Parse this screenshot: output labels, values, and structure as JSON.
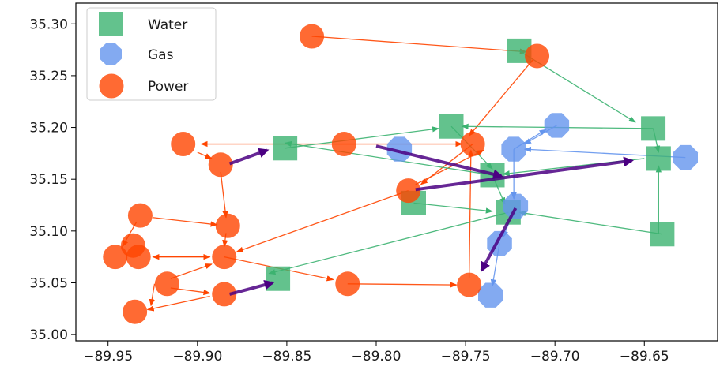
{
  "chart_data": {
    "type": "scatter",
    "title": "",
    "xlabel": "",
    "ylabel": "",
    "xlim": [
      -89.968,
      -89.609
    ],
    "ylim": [
      34.994,
      35.32
    ],
    "grid": false,
    "legend_position": "top-left",
    "x_ticks": [
      -89.95,
      -89.9,
      -89.85,
      -89.8,
      -89.75,
      -89.7,
      -89.65
    ],
    "x_tick_labels": [
      "−89.95",
      "−89.90",
      "−89.85",
      "−89.80",
      "−89.75",
      "−89.70",
      "−89.65"
    ],
    "y_ticks": [
      35.0,
      35.05,
      35.1,
      35.15,
      35.2,
      35.25,
      35.3
    ],
    "y_tick_labels": [
      "35.00",
      "35.05",
      "35.10",
      "35.15",
      "35.20",
      "35.25",
      "35.30"
    ],
    "legend": [
      {
        "label": "Water",
        "marker": "square",
        "color": "#3cb371"
      },
      {
        "label": "Gas",
        "marker": "octagon",
        "color": "#6495ed"
      },
      {
        "label": "Power",
        "marker": "circle",
        "color": "#ff4500"
      }
    ],
    "series": [
      {
        "name": "Water",
        "marker": "square",
        "color": "#3cb371",
        "points": [
          {
            "x": -89.72,
            "y": 35.274
          },
          {
            "x": -89.758,
            "y": 35.201
          },
          {
            "x": -89.645,
            "y": 35.199
          },
          {
            "x": -89.851,
            "y": 35.18
          },
          {
            "x": -89.642,
            "y": 35.17
          },
          {
            "x": -89.735,
            "y": 35.154
          },
          {
            "x": -89.779,
            "y": 35.127
          },
          {
            "x": -89.726,
            "y": 35.118
          },
          {
            "x": -89.64,
            "y": 35.097
          },
          {
            "x": -89.855,
            "y": 35.054
          }
        ]
      },
      {
        "name": "Gas",
        "marker": "octagon",
        "color": "#6495ed",
        "points": [
          {
            "x": -89.699,
            "y": 35.202
          },
          {
            "x": -89.787,
            "y": 35.179
          },
          {
            "x": -89.723,
            "y": 35.179
          },
          {
            "x": -89.627,
            "y": 35.171
          },
          {
            "x": -89.722,
            "y": 35.124
          },
          {
            "x": -89.731,
            "y": 35.088
          },
          {
            "x": -89.736,
            "y": 35.038
          }
        ]
      },
      {
        "name": "Power",
        "marker": "circle",
        "color": "#ff4500",
        "points": [
          {
            "x": -89.836,
            "y": 35.288
          },
          {
            "x": -89.71,
            "y": 35.269
          },
          {
            "x": -89.908,
            "y": 35.184
          },
          {
            "x": -89.818,
            "y": 35.184
          },
          {
            "x": -89.746,
            "y": 35.184
          },
          {
            "x": -89.887,
            "y": 35.164
          },
          {
            "x": -89.782,
            "y": 35.139
          },
          {
            "x": -89.932,
            "y": 35.115
          },
          {
            "x": -89.883,
            "y": 35.105
          },
          {
            "x": -89.936,
            "y": 35.086
          },
          {
            "x": -89.946,
            "y": 35.075
          },
          {
            "x": -89.933,
            "y": 35.075
          },
          {
            "x": -89.885,
            "y": 35.075
          },
          {
            "x": -89.917,
            "y": 35.049
          },
          {
            "x": -89.816,
            "y": 35.049
          },
          {
            "x": -89.748,
            "y": 35.048
          },
          {
            "x": -89.885,
            "y": 35.039
          },
          {
            "x": -89.935,
            "y": 35.022
          }
        ]
      }
    ],
    "edges": [
      {
        "series": "Power",
        "from": [
          -89.836,
          35.288
        ],
        "to": [
          -89.716,
          35.273
        ]
      },
      {
        "series": "Power",
        "from": [
          -89.712,
          35.266
        ],
        "to": [
          -89.748,
          35.192
        ]
      },
      {
        "series": "Power",
        "from": [
          -89.818,
          35.184
        ],
        "to": [
          -89.898,
          35.184
        ]
      },
      {
        "series": "Power",
        "from": [
          -89.9,
          35.176
        ],
        "to": [
          -89.892,
          35.17
        ]
      },
      {
        "series": "Power",
        "from": [
          -89.887,
          35.157
        ],
        "to": [
          -89.884,
          35.113
        ]
      },
      {
        "series": "Power",
        "from": [
          -89.884,
          35.098
        ],
        "to": [
          -89.885,
          35.085
        ]
      },
      {
        "series": "Power",
        "from": [
          -89.925,
          35.113
        ],
        "to": [
          -89.889,
          35.106
        ]
      },
      {
        "series": "Power",
        "from": [
          -89.934,
          35.109
        ],
        "to": [
          -89.942,
          35.085
        ]
      },
      {
        "series": "Power",
        "from": [
          -89.893,
          35.075
        ],
        "to": [
          -89.925,
          35.075
        ]
      },
      {
        "series": "Power",
        "from": [
          -89.925,
          35.075
        ],
        "to": [
          -89.893,
          35.075
        ]
      },
      {
        "series": "Power",
        "from": [
          -89.915,
          35.054
        ],
        "to": [
          -89.892,
          35.068
        ]
      },
      {
        "series": "Power",
        "from": [
          -89.924,
          35.049
        ],
        "to": [
          -89.926,
          35.028
        ]
      },
      {
        "series": "Power",
        "from": [
          -89.915,
          35.045
        ],
        "to": [
          -89.893,
          35.04
        ]
      },
      {
        "series": "Power",
        "from": [
          -89.893,
          35.037
        ],
        "to": [
          -89.928,
          35.024
        ]
      },
      {
        "series": "Power",
        "from": [
          -89.885,
          35.075
        ],
        "to": [
          -89.824,
          35.053
        ]
      },
      {
        "series": "Power",
        "from": [
          -89.816,
          35.049
        ],
        "to": [
          -89.755,
          35.048
        ]
      },
      {
        "series": "Power",
        "from": [
          -89.782,
          35.139
        ],
        "to": [
          -89.878,
          35.08
        ]
      },
      {
        "series": "Power",
        "from": [
          -89.748,
          35.055
        ],
        "to": [
          -89.747,
          35.178
        ]
      },
      {
        "series": "Power",
        "from": [
          -89.746,
          35.184
        ],
        "to": [
          -89.775,
          35.145
        ]
      },
      {
        "series": "Power",
        "from": [
          -89.818,
          35.184
        ],
        "to": [
          -89.752,
          35.184
        ]
      },
      {
        "series": "Power",
        "from": [
          -89.778,
          35.145
        ],
        "to": [
          -89.74,
          35.178
        ]
      },
      {
        "series": "Water",
        "from": [
          -89.72,
          35.274
        ],
        "to": [
          -89.655,
          35.205
        ]
      },
      {
        "series": "Water",
        "from": [
          -89.645,
          35.199
        ],
        "to": [
          -89.752,
          35.201
        ]
      },
      {
        "series": "Water",
        "from": [
          -89.645,
          35.199
        ],
        "to": [
          -89.642,
          35.176
        ]
      },
      {
        "series": "Water",
        "from": [
          -89.851,
          35.18
        ],
        "to": [
          -89.765,
          35.199
        ]
      },
      {
        "series": "Water",
        "from": [
          -89.758,
          35.201
        ],
        "to": [
          -89.735,
          35.16
        ]
      },
      {
        "series": "Water",
        "from": [
          -89.735,
          35.154
        ],
        "to": [
          -89.851,
          35.185
        ]
      },
      {
        "series": "Water",
        "from": [
          -89.779,
          35.127
        ],
        "to": [
          -89.735,
          35.119
        ]
      },
      {
        "series": "Water",
        "from": [
          -89.735,
          35.154
        ],
        "to": [
          -89.728,
          35.126
        ]
      },
      {
        "series": "Water",
        "from": [
          -89.64,
          35.097
        ],
        "to": [
          -89.72,
          35.118
        ]
      },
      {
        "series": "Water",
        "from": [
          -89.642,
          35.097
        ],
        "to": [
          -89.642,
          35.163
        ]
      },
      {
        "series": "Water",
        "from": [
          -89.726,
          35.118
        ],
        "to": [
          -89.86,
          35.059
        ]
      },
      {
        "series": "Water",
        "from": [
          -89.65,
          35.17
        ],
        "to": [
          -89.729,
          35.155
        ]
      },
      {
        "series": "Gas",
        "from": [
          -89.627,
          35.171
        ],
        "to": [
          -89.717,
          35.179
        ]
      },
      {
        "series": "Gas",
        "from": [
          -89.723,
          35.179
        ],
        "to": [
          -89.705,
          35.198
        ]
      },
      {
        "series": "Gas",
        "from": [
          -89.699,
          35.202
        ],
        "to": [
          -89.717,
          35.184
        ]
      },
      {
        "series": "Gas",
        "from": [
          -89.723,
          35.179
        ],
        "to": [
          -89.723,
          35.131
        ]
      },
      {
        "series": "Gas",
        "from": [
          -89.731,
          35.088
        ],
        "to": [
          -89.735,
          35.047
        ]
      },
      {
        "series": "Gas",
        "from": [
          -89.722,
          35.124
        ],
        "to": [
          -89.729,
          35.094
        ]
      }
    ],
    "thick_edges": [
      {
        "from": [
          -89.882,
          35.165
        ],
        "to": [
          -89.861,
          35.178
        ]
      },
      {
        "from": [
          -89.882,
          35.039
        ],
        "to": [
          -89.858,
          35.05
        ]
      },
      {
        "from": [
          -89.8,
          35.182
        ],
        "to": [
          -89.73,
          35.153
        ]
      },
      {
        "from": [
          -89.778,
          35.14
        ],
        "to": [
          -89.657,
          35.168
        ]
      },
      {
        "from": [
          -89.722,
          35.122
        ],
        "to": [
          -89.741,
          35.062
        ]
      }
    ]
  }
}
